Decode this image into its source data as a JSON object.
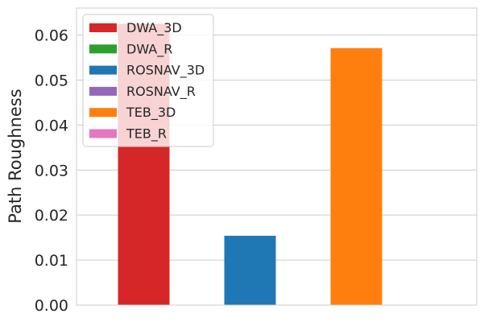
{
  "chart_data": {
    "type": "bar",
    "title": "",
    "xlabel": "",
    "ylabel": "Path Roughness",
    "ylim": [
      0,
      0.066
    ],
    "yticks": [
      0.0,
      0.01,
      0.02,
      0.03,
      0.04,
      0.05,
      0.06
    ],
    "ytick_labels": [
      "0.00",
      "0.01",
      "0.02",
      "0.03",
      "0.04",
      "0.05",
      "0.06"
    ],
    "grid": "horizontal",
    "legend_position": "top-left",
    "series": [
      {
        "name": "DWA_3D",
        "value": 0.0625,
        "color": "#d62728"
      },
      {
        "name": "DWA_R",
        "value": 0,
        "color": "#2ca02c"
      },
      {
        "name": "ROSNAV_3D",
        "value": 0.0154,
        "color": "#1f77b4"
      },
      {
        "name": "ROSNAV_R",
        "value": 0,
        "color": "#9467bd"
      },
      {
        "name": "TEB_3D",
        "value": 0.0571,
        "color": "#ff7f0e"
      },
      {
        "name": "TEB_R",
        "value": 0,
        "color": "#e377c2"
      }
    ]
  }
}
